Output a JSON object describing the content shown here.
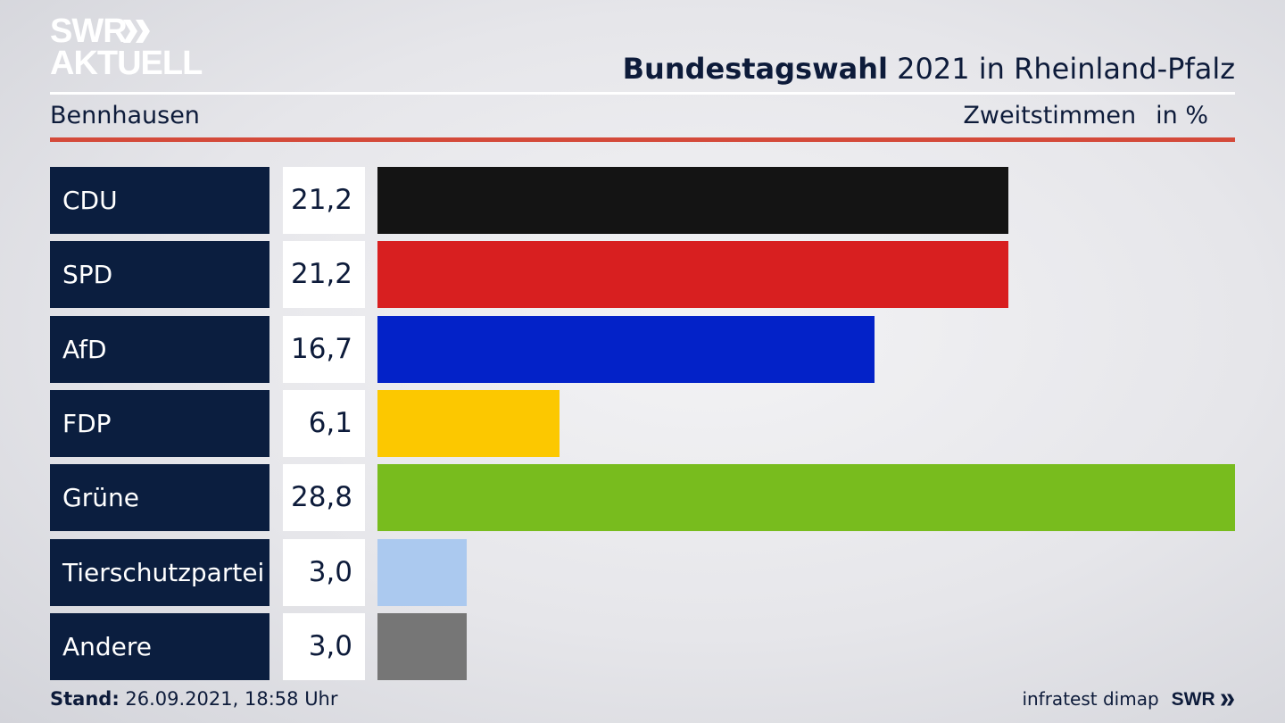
{
  "logo": {
    "line1": "SWR",
    "line2": "AKTUELL"
  },
  "title": {
    "bold": "Bundestagswahl",
    "rest": "2021 in Rheinland-Pfalz"
  },
  "region": "Bennhausen",
  "subhead": {
    "measure": "Zweitstimmen",
    "unit": "in %"
  },
  "chart_data": {
    "type": "bar",
    "orientation": "horizontal",
    "categories": [
      "CDU",
      "SPD",
      "AfD",
      "FDP",
      "Grüne",
      "Tierschutzpartei",
      "Andere"
    ],
    "values": [
      21.2,
      21.2,
      16.7,
      6.1,
      28.8,
      3.0,
      3.0
    ],
    "labels": [
      "21,2",
      "21,2",
      "16,7",
      "6,1",
      "28,8",
      "3,0",
      "3,0"
    ],
    "colors": [
      "#141414",
      "#d81f20",
      "#0322c8",
      "#fcc800",
      "#78bc1e",
      "#abc9ef",
      "#767676"
    ],
    "xlim": [
      0,
      28.8
    ],
    "grid": false
  },
  "footer": {
    "stand_label": "Stand:",
    "stand_value": "26.09.2021, 18:58 Uhr",
    "source": "infratest dimap",
    "brand": "SWR"
  }
}
